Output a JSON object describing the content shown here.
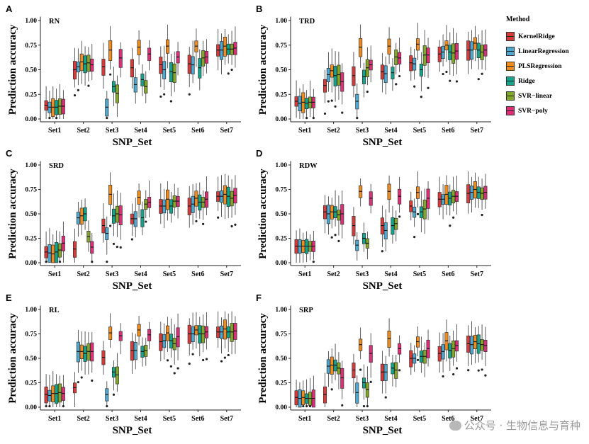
{
  "legend": {
    "title": "Method",
    "items": [
      {
        "label": "KernelRidge",
        "color": "#d83a3a"
      },
      {
        "label": "LinearRegression",
        "color": "#4fa8cf"
      },
      {
        "label": "PLSRegression",
        "color": "#f08c1e"
      },
      {
        "label": "Ridge",
        "color": "#14a48c"
      },
      {
        "label": "SVR−linear",
        "color": "#84a628"
      },
      {
        "label": "SVR−poly",
        "color": "#de2e78"
      }
    ]
  },
  "watermark": "公众号 · 生物信息与育种",
  "chart_data": [
    {
      "panel": "A",
      "title": "RN",
      "type": "box",
      "xlabel": "SNP_Set",
      "ylabel": "Prediction accuracy",
      "categories": [
        "Set1",
        "Set2",
        "Set3",
        "Set4",
        "Set5",
        "Set6",
        "Set7"
      ],
      "yticks": [
        "0.00",
        "0.25",
        "0.50",
        "0.75",
        "1.00"
      ],
      "ylim": [
        0,
        1
      ],
      "medians": [
        [
          0.14,
          0.12,
          0.12,
          0.12,
          0.13,
          0.13
        ],
        [
          0.5,
          0.53,
          0.58,
          0.56,
          0.57,
          0.55
        ],
        [
          0.53,
          0.12,
          0.7,
          0.33,
          0.26,
          0.62
        ],
        [
          0.52,
          0.35,
          0.73,
          0.4,
          0.33,
          0.66
        ],
        [
          0.55,
          0.5,
          0.74,
          0.48,
          0.47,
          0.63
        ],
        [
          0.56,
          0.55,
          0.74,
          0.52,
          0.62,
          0.63
        ],
        [
          0.7,
          0.7,
          0.74,
          0.71,
          0.71,
          0.72
        ]
      ]
    },
    {
      "panel": "B",
      "title": "TRD",
      "type": "box",
      "xlabel": "SNP_Set",
      "ylabel": "Prediction accuracy",
      "categories": [
        "Set1",
        "Set2",
        "Set3",
        "Set4",
        "Set5",
        "Set6",
        "Set7"
      ],
      "yticks": [
        "0.00",
        "0.25",
        "0.50",
        "0.75",
        "1.00"
      ],
      "ylim": [
        0,
        1
      ],
      "medians": [
        [
          0.18,
          0.16,
          0.17,
          0.16,
          0.17,
          0.17
        ],
        [
          0.34,
          0.45,
          0.49,
          0.44,
          0.45,
          0.38
        ],
        [
          0.44,
          0.18,
          0.73,
          0.43,
          0.52,
          0.55
        ],
        [
          0.48,
          0.46,
          0.74,
          0.47,
          0.63,
          0.62
        ],
        [
          0.57,
          0.56,
          0.76,
          0.5,
          0.65,
          0.65
        ],
        [
          0.66,
          0.68,
          0.75,
          0.68,
          0.67,
          0.69
        ],
        [
          0.7,
          0.7,
          0.77,
          0.7,
          0.68,
          0.7
        ]
      ]
    },
    {
      "panel": "C",
      "title": "SRD",
      "type": "box",
      "xlabel": "SNP_Set",
      "ylabel": "Prediction accuracy",
      "categories": [
        "Set1",
        "Set2",
        "Set3",
        "Set4",
        "Set5",
        "Set6",
        "Set7"
      ],
      "yticks": [
        "0.00",
        "0.25",
        "0.50",
        "0.75",
        "1.00"
      ],
      "ylim": [
        0,
        1
      ],
      "medians": [
        [
          0.11,
          0.1,
          0.09,
          0.11,
          0.13,
          0.2
        ],
        [
          0.14,
          0.46,
          0.48,
          0.5,
          0.27,
          0.16
        ],
        [
          0.38,
          0.3,
          0.7,
          0.48,
          0.5,
          0.49
        ],
        [
          0.45,
          0.45,
          0.67,
          0.46,
          0.6,
          0.62
        ],
        [
          0.58,
          0.58,
          0.65,
          0.58,
          0.63,
          0.63
        ],
        [
          0.58,
          0.6,
          0.66,
          0.62,
          0.62,
          0.65
        ],
        [
          0.68,
          0.68,
          0.7,
          0.68,
          0.66,
          0.69
        ]
      ]
    },
    {
      "panel": "D",
      "title": "RDW",
      "type": "box",
      "xlabel": "SNP_Set",
      "ylabel": "Prediction accuracy",
      "categories": [
        "Set1",
        "Set2",
        "Set3",
        "Set4",
        "Set5",
        "Set6",
        "Set7"
      ],
      "yticks": [
        "0.00",
        "0.25",
        "0.50",
        "0.75",
        "1.00"
      ],
      "ylim": [
        0,
        1
      ],
      "medians": [
        [
          0.17,
          0.17,
          0.17,
          0.17,
          0.17,
          0.17
        ],
        [
          0.52,
          0.5,
          0.52,
          0.52,
          0.49,
          0.5
        ],
        [
          0.38,
          0.18,
          0.73,
          0.25,
          0.2,
          0.66
        ],
        [
          0.38,
          0.33,
          0.73,
          0.38,
          0.4,
          0.68
        ],
        [
          0.58,
          0.52,
          0.72,
          0.52,
          0.55,
          0.66
        ],
        [
          0.65,
          0.65,
          0.7,
          0.66,
          0.68,
          0.68
        ],
        [
          0.71,
          0.72,
          0.75,
          0.72,
          0.71,
          0.72
        ]
      ]
    },
    {
      "panel": "E",
      "title": "RL",
      "type": "box",
      "xlabel": "SNP_Set",
      "ylabel": "Prediction accuracy",
      "categories": [
        "Set1",
        "Set2",
        "Set3",
        "Set4",
        "Set5",
        "Set6",
        "Set7"
      ],
      "yticks": [
        "0.00",
        "0.25",
        "0.50",
        "0.75",
        "1.00"
      ],
      "ylim": [
        0,
        1
      ],
      "medians": [
        [
          0.13,
          0.12,
          0.14,
          0.14,
          0.15,
          0.14
        ],
        [
          0.2,
          0.57,
          0.57,
          0.55,
          0.57,
          0.57
        ],
        [
          0.51,
          0.13,
          0.76,
          0.36,
          0.33,
          0.73
        ],
        [
          0.58,
          0.58,
          0.79,
          0.57,
          0.58,
          0.74
        ],
        [
          0.67,
          0.68,
          0.76,
          0.68,
          0.65,
          0.72
        ],
        [
          0.75,
          0.75,
          0.79,
          0.75,
          0.75,
          0.77
        ],
        [
          0.77,
          0.77,
          0.8,
          0.77,
          0.77,
          0.78
        ]
      ]
    },
    {
      "panel": "F",
      "title": "SRP",
      "type": "box",
      "xlabel": "SNP_Set",
      "ylabel": "Prediction accuracy",
      "categories": [
        "Set1",
        "Set2",
        "Set3",
        "Set4",
        "Set5",
        "Set6",
        "Set7"
      ],
      "yticks": [
        "0.00",
        "0.25",
        "0.50",
        "0.75",
        "1.00"
      ],
      "ylim": [
        0,
        1
      ],
      "medians": [
        [
          0.1,
          0.09,
          0.1,
          0.09,
          0.09,
          0.09
        ],
        [
          0.13,
          0.42,
          0.43,
          0.43,
          0.4,
          0.3
        ],
        [
          0.38,
          0.15,
          0.64,
          0.25,
          0.18,
          0.55
        ],
        [
          0.36,
          0.36,
          0.7,
          0.4,
          0.38,
          0.6
        ],
        [
          0.5,
          0.5,
          0.67,
          0.52,
          0.52,
          0.6
        ],
        [
          0.55,
          0.57,
          0.68,
          0.58,
          0.6,
          0.63
        ],
        [
          0.65,
          0.64,
          0.67,
          0.65,
          0.64,
          0.63
        ]
      ]
    }
  ]
}
